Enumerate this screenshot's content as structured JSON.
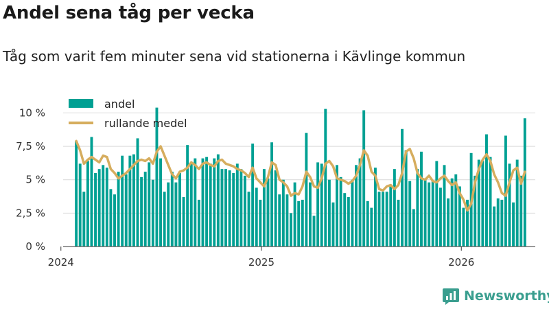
{
  "header": {
    "title": "Andel sena tåg per vecka",
    "subtitle": "Tåg som varit fem minuter sena vid stationerna i Kävlinge kommun"
  },
  "brand": {
    "name": "Newsworthy"
  },
  "colors": {
    "bar": "#00a093",
    "line": "#d6ad5e",
    "grid": "#d9d9d9",
    "axis": "#333333",
    "brand": "#3a9e8f"
  },
  "chart_data": {
    "type": "bar",
    "title": "Andel sena tåg per vecka",
    "subtitle": "Tåg som varit fem minuter sena vid stationerna i Kävlinge kommun",
    "xlabel": "",
    "ylabel": "",
    "ylim": [
      0,
      11
    ],
    "yticks": [
      0,
      2.5,
      5,
      7.5,
      10
    ],
    "ytick_labels": [
      "0 %",
      "2,5 %",
      "5 %",
      "7,5 %",
      "10 %"
    ],
    "grid": true,
    "legend_position": "top-left",
    "x_start": "2024-01-29",
    "x_range": [
      "2023-12-21",
      "2026-05-16"
    ],
    "xticks": [
      "2024-01-01",
      "2025-01-01",
      "2026-01-01"
    ],
    "xtick_labels": [
      "2024",
      "2025",
      "2026"
    ],
    "series": [
      {
        "name": "andel",
        "type": "bar",
        "values": [
          7.9,
          6.2,
          4.1,
          6.4,
          8.2,
          5.5,
          5.8,
          6.1,
          5.9,
          4.3,
          3.9,
          5.6,
          6.8,
          5.4,
          6.8,
          6.9,
          8.1,
          5.2,
          5.6,
          6.3,
          5.0,
          10.4,
          6.6,
          4.1,
          4.8,
          5.6,
          4.8,
          5.5,
          3.7,
          7.6,
          6.2,
          6.6,
          3.5,
          6.6,
          6.7,
          6.2,
          6.6,
          6.9,
          5.8,
          5.8,
          5.7,
          5.5,
          6.2,
          5.8,
          5.3,
          4.1,
          7.7,
          4.4,
          3.5,
          5.8,
          5.1,
          7.8,
          5.7,
          3.9,
          5.0,
          3.9,
          2.5,
          4.8,
          3.4,
          3.5,
          8.5,
          4.8,
          2.3,
          6.3,
          6.2,
          10.3,
          5.0,
          3.3,
          6.1,
          5.2,
          4.0,
          3.7,
          5.0,
          6.1,
          6.6,
          10.2,
          3.4,
          2.9,
          5.9,
          4.1,
          4.1,
          4.1,
          4.6,
          5.8,
          3.5,
          8.8,
          7.2,
          4.9,
          2.8,
          5.8,
          7.1,
          5.0,
          4.8,
          4.9,
          6.4,
          4.4,
          6.1,
          3.6,
          5.1,
          5.4,
          4.5,
          2.9,
          3.5,
          7.0,
          5.3,
          6.5,
          6.4,
          8.4,
          6.7,
          3.0,
          3.6,
          3.5,
          8.3,
          6.2,
          3.3,
          6.5,
          5.3,
          9.6
        ]
      },
      {
        "name": "rullande medel",
        "type": "line",
        "values": [
          7.9,
          7.2,
          6.2,
          6.5,
          6.7,
          6.5,
          6.3,
          6.8,
          6.7,
          5.8,
          5.5,
          5.1,
          5.3,
          5.5,
          5.8,
          6.1,
          6.4,
          6.5,
          6.4,
          6.6,
          6.2,
          7.1,
          7.5,
          6.8,
          6.1,
          5.4,
          5.1,
          5.6,
          5.7,
          5.9,
          6.3,
          6.1,
          5.8,
          6.2,
          6.3,
          6.1,
          6.0,
          6.4,
          6.5,
          6.2,
          6.1,
          6.0,
          5.8,
          5.7,
          5.5,
          5.2,
          5.9,
          5.1,
          4.8,
          4.5,
          5.2,
          6.3,
          6.1,
          5.0,
          4.8,
          4.5,
          3.8,
          4.0,
          3.9,
          4.5,
          5.6,
          5.2,
          4.5,
          4.4,
          5.1,
          6.2,
          6.4,
          6.0,
          5.1,
          5.0,
          4.9,
          4.7,
          4.9,
          5.3,
          6.1,
          7.2,
          6.8,
          5.6,
          5.3,
          4.3,
          4.2,
          4.5,
          4.6,
          4.3,
          4.6,
          5.5,
          7.1,
          7.3,
          6.6,
          5.5,
          5.1,
          5.0,
          5.3,
          4.9,
          4.8,
          5.1,
          5.3,
          4.9,
          4.6,
          4.8,
          4.0,
          3.5,
          2.7,
          3.2,
          4.8,
          5.8,
          6.5,
          6.9,
          6.4,
          5.4,
          4.8,
          4.0,
          3.8,
          4.8,
          5.7,
          5.9,
          4.7,
          5.6
        ]
      }
    ]
  }
}
